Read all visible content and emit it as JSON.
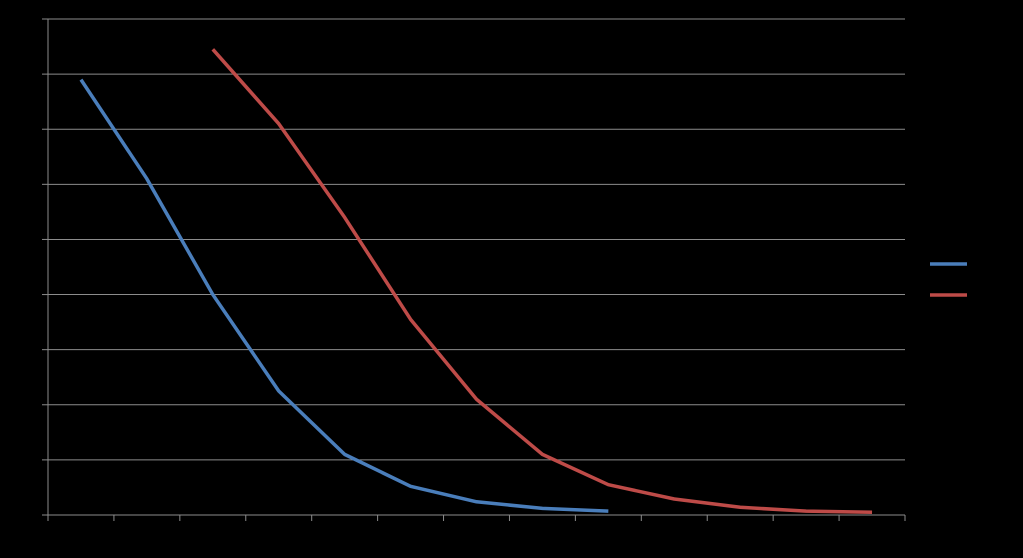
{
  "chart_data": {
    "type": "line",
    "title": "",
    "xlabel": "",
    "ylabel": "",
    "x_categories": 13,
    "ylim": [
      0,
      9
    ],
    "grid": true,
    "legend": "right",
    "background": "#000000",
    "gridline_color": "#8c8c8c",
    "series": [
      {
        "color": "#4a7ebb",
        "values": [
          7.9,
          6.1,
          4.0,
          2.25,
          1.1,
          0.52,
          0.24,
          0.12,
          0.07
        ]
      },
      {
        "color": "#be4b48",
        "values": [
          null,
          null,
          8.45,
          7.1,
          5.4,
          3.55,
          2.1,
          1.1,
          0.55,
          0.29,
          0.14,
          0.07,
          0.05
        ]
      }
    ]
  }
}
